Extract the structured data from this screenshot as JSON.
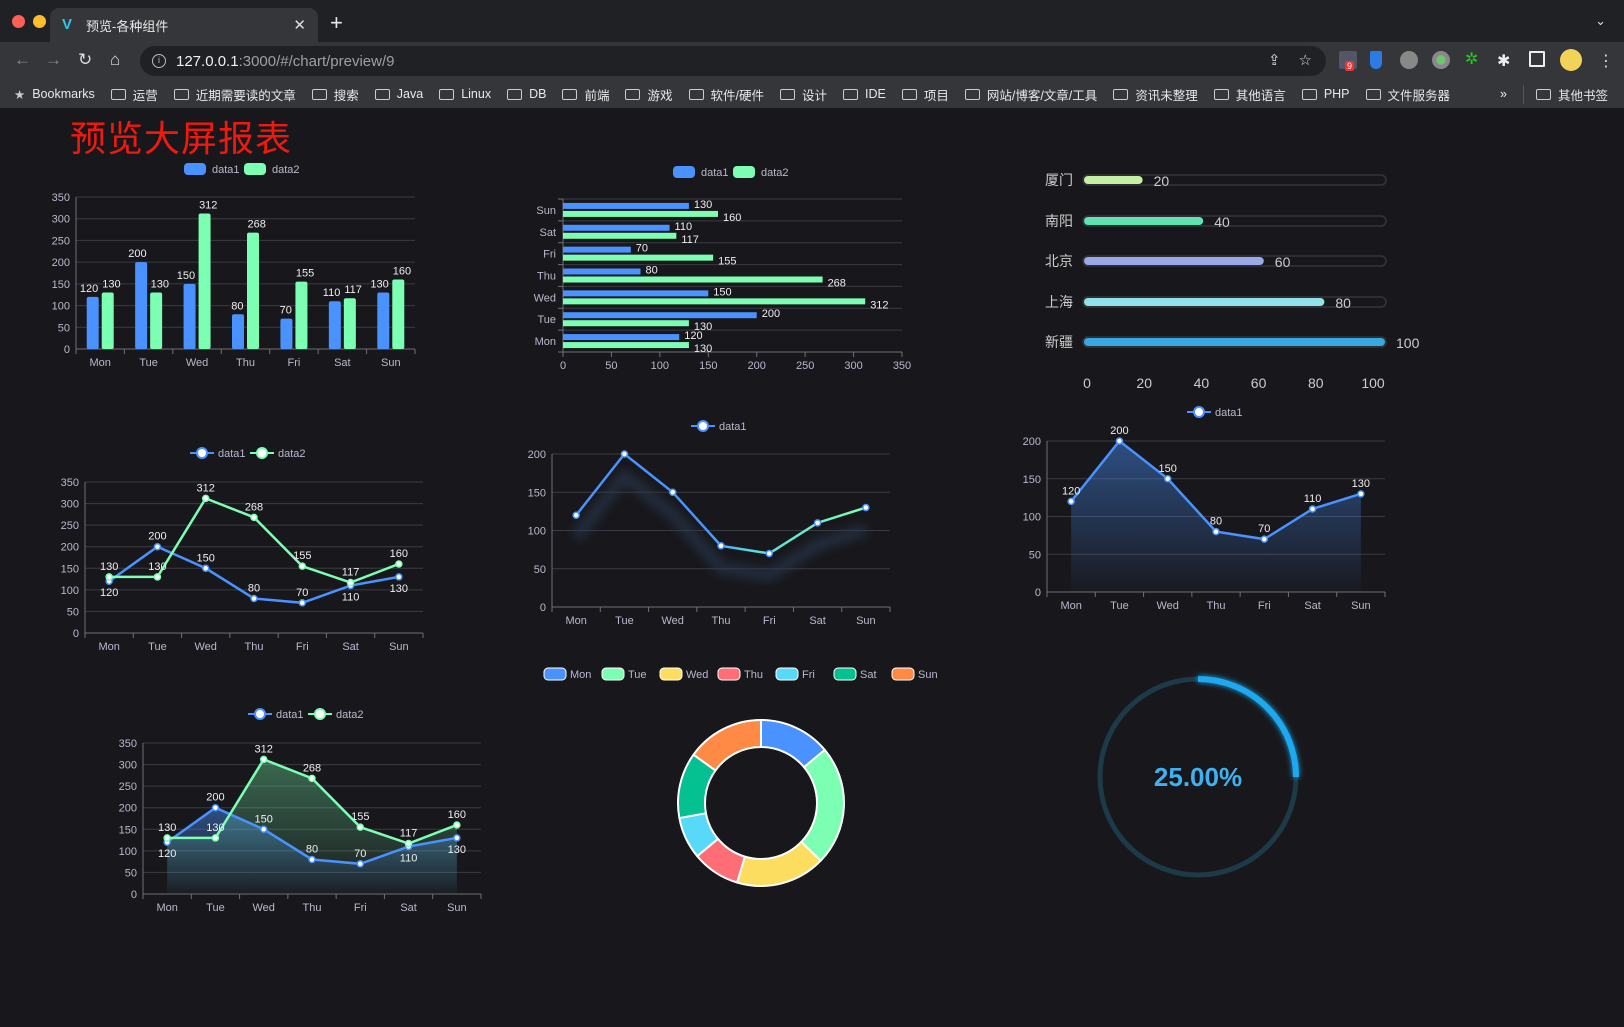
{
  "browser": {
    "tab_title": "预览-各种组件",
    "url_host": "127.0.0.1",
    "url_path": ":3000/#/chart/preview/9",
    "extension_badge": "9",
    "bookmarks": [
      "Bookmarks",
      "运营",
      "近期需要读的文章",
      "搜索",
      "Java",
      "Linux",
      "DB",
      "前端",
      "游戏",
      "软件/硬件",
      "设计",
      "IDE",
      "项目",
      "网站/博客/文章/工具",
      "资讯未整理",
      "其他语言",
      "PHP",
      "文件服务器"
    ],
    "overflow": "»",
    "other_bookmarks": "其他书签"
  },
  "page": {
    "title": "预览大屏报表",
    "title_color": "#f0190f",
    "background": "#18181c"
  },
  "chart_data": [
    {
      "id": "bar",
      "type": "bar",
      "categories": [
        "Mon",
        "Tue",
        "Wed",
        "Thu",
        "Fri",
        "Sat",
        "Sun"
      ],
      "ylim": [
        0,
        350
      ],
      "yticks": [
        0,
        50,
        100,
        150,
        200,
        250,
        300,
        350
      ],
      "series": [
        {
          "name": "data1",
          "values": [
            120,
            200,
            150,
            80,
            70,
            110,
            130
          ],
          "color": "#4992ff"
        },
        {
          "name": "data2",
          "values": [
            130,
            130,
            312,
            268,
            155,
            117,
            160
          ],
          "color": "#7cffb2"
        }
      ],
      "legend": "top",
      "grid": true,
      "data_labels": true
    },
    {
      "id": "hbar",
      "type": "bar",
      "orientation": "horizontal",
      "categories": [
        "Mon",
        "Tue",
        "Wed",
        "Thu",
        "Fri",
        "Sat",
        "Sun"
      ],
      "xlim": [
        0,
        350
      ],
      "xticks": [
        0,
        50,
        100,
        150,
        200,
        250,
        300,
        350
      ],
      "series": [
        {
          "name": "data1",
          "values": [
            120,
            200,
            150,
            80,
            70,
            110,
            130
          ],
          "color": "#4992ff"
        },
        {
          "name": "data2",
          "values": [
            130,
            130,
            312,
            268,
            155,
            117,
            160
          ],
          "color": "#7cffb2"
        }
      ],
      "legend": "top",
      "grid": true,
      "data_labels": true
    },
    {
      "id": "progress",
      "type": "bar",
      "orientation": "horizontal",
      "categories": [
        "厦门",
        "南阳",
        "北京",
        "上海",
        "新疆"
      ],
      "values": [
        20,
        40,
        60,
        80,
        100
      ],
      "colors": [
        "#c4f0a5",
        "#5fe3b1",
        "#9da8e8",
        "#90e2e8",
        "#37a9e0"
      ],
      "xlim": [
        0,
        100
      ],
      "xticks": [
        0,
        20,
        40,
        60,
        80,
        100
      ],
      "data_labels": true
    },
    {
      "id": "line2",
      "type": "line",
      "categories": [
        "Mon",
        "Tue",
        "Wed",
        "Thu",
        "Fri",
        "Sat",
        "Sun"
      ],
      "ylim": [
        0,
        350
      ],
      "yticks": [
        0,
        50,
        100,
        150,
        200,
        250,
        300,
        350
      ],
      "series": [
        {
          "name": "data1",
          "values": [
            120,
            200,
            150,
            80,
            70,
            110,
            130
          ],
          "color": "#4992ff"
        },
        {
          "name": "data2",
          "values": [
            130,
            130,
            312,
            268,
            155,
            117,
            160
          ],
          "color": "#7cffb2"
        }
      ],
      "legend": "top",
      "grid": true,
      "data_labels": true
    },
    {
      "id": "line1",
      "type": "line",
      "categories": [
        "Mon",
        "Tue",
        "Wed",
        "Thu",
        "Fri",
        "Sat",
        "Sun"
      ],
      "ylim": [
        0,
        200
      ],
      "yticks": [
        0,
        50,
        100,
        150,
        200
      ],
      "series": [
        {
          "name": "data1",
          "values": [
            120,
            200,
            150,
            80,
            70,
            110,
            130
          ],
          "color": "#4992ff",
          "gradient_to": "#7cffb2",
          "shadow": true
        }
      ],
      "legend": "top",
      "grid": true,
      "data_labels": false
    },
    {
      "id": "area1",
      "type": "area",
      "categories": [
        "Mon",
        "Tue",
        "Wed",
        "Thu",
        "Fri",
        "Sat",
        "Sun"
      ],
      "ylim": [
        0,
        200
      ],
      "yticks": [
        0,
        50,
        100,
        150,
        200
      ],
      "series": [
        {
          "name": "data1",
          "values": [
            120,
            200,
            150,
            80,
            70,
            110,
            130
          ],
          "color": "#4992ff"
        }
      ],
      "legend": "top",
      "grid": true,
      "data_labels": true
    },
    {
      "id": "area2",
      "type": "area",
      "categories": [
        "Mon",
        "Tue",
        "Wed",
        "Thu",
        "Fri",
        "Sat",
        "Sun"
      ],
      "ylim": [
        0,
        350
      ],
      "yticks": [
        0,
        50,
        100,
        150,
        200,
        250,
        300,
        350
      ],
      "series": [
        {
          "name": "data1",
          "values": [
            120,
            200,
            150,
            80,
            70,
            110,
            130
          ],
          "color": "#4992ff"
        },
        {
          "name": "data2",
          "values": [
            130,
            130,
            312,
            268,
            155,
            117,
            160
          ],
          "color": "#7cffb2"
        }
      ],
      "legend": "top",
      "grid": true,
      "data_labels": true
    },
    {
      "id": "donut",
      "type": "pie",
      "donut": true,
      "categories": [
        "Mon",
        "Tue",
        "Wed",
        "Thu",
        "Fri",
        "Sat",
        "Sun"
      ],
      "values": [
        120,
        200,
        150,
        80,
        70,
        110,
        130
      ],
      "colors": [
        "#4992ff",
        "#7cffb2",
        "#fddd60",
        "#ff6e76",
        "#58d9f9",
        "#05c091",
        "#ff8a45"
      ],
      "legend": "top"
    },
    {
      "id": "gauge",
      "type": "gauge",
      "value": 25,
      "label": "25.00%",
      "color": "#1ea9f0",
      "track_color": "#1d3a48"
    }
  ]
}
